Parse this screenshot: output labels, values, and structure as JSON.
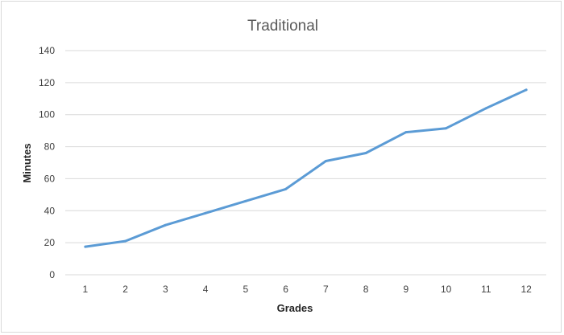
{
  "chart_data": {
    "type": "line",
    "title": "Traditional",
    "xlabel": "Grades",
    "ylabel": "Minutes",
    "categories": [
      "1",
      "2",
      "3",
      "4",
      "5",
      "6",
      "7",
      "8",
      "9",
      "10",
      "11",
      "12"
    ],
    "series": [
      {
        "values": [
          17.5,
          21,
          31,
          38.5,
          46,
          53.5,
          71,
          76,
          89,
          91.5,
          104,
          115.5
        ],
        "color": "#5b9bd5"
      }
    ],
    "ylim": [
      0,
      140
    ],
    "yticks": [
      0,
      20,
      40,
      60,
      80,
      100,
      120,
      140
    ],
    "grid": true,
    "legend": "none"
  }
}
